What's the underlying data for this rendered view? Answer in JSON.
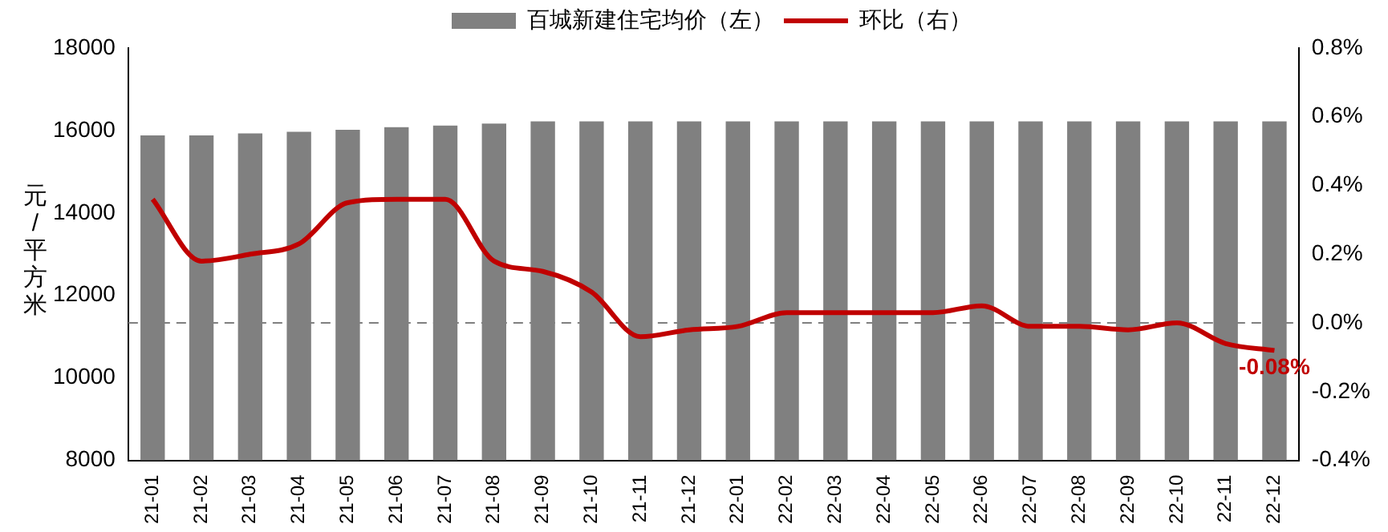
{
  "chart_data": {
    "type": "bar",
    "ylabel": "元/平方米",
    "categories": [
      "21-01",
      "21-02",
      "21-03",
      "21-04",
      "21-05",
      "21-06",
      "21-07",
      "21-08",
      "21-09",
      "21-10",
      "21-11",
      "21-12",
      "22-01",
      "22-02",
      "22-03",
      "22-04",
      "22-05",
      "22-06",
      "22-07",
      "22-08",
      "22-09",
      "22-10",
      "22-11",
      "22-12"
    ],
    "series": [
      {
        "name": "百城新建住宅均价（左）",
        "type": "bar",
        "color": "#808080",
        "values": [
          15880,
          15880,
          15930,
          15970,
          16020,
          16080,
          16120,
          16170,
          16220,
          16220,
          16220,
          16220,
          16220,
          16220,
          16220,
          16220,
          16220,
          16220,
          16220,
          16220,
          16220,
          16220,
          16220,
          16220
        ]
      },
      {
        "name": "环比（右）",
        "type": "line",
        "axis": "y2",
        "color": "#c00000",
        "values": [
          0.36,
          0.18,
          0.2,
          0.23,
          0.35,
          0.36,
          0.36,
          0.18,
          0.15,
          0.09,
          -0.04,
          -0.02,
          -0.01,
          0.03,
          0.03,
          0.03,
          0.03,
          0.05,
          -0.01,
          -0.01,
          -0.02,
          0,
          -0.06,
          -0.08
        ],
        "value_labels": [
          null,
          null,
          null,
          null,
          null,
          null,
          null,
          null,
          null,
          null,
          null,
          null,
          null,
          null,
          null,
          null,
          null,
          null,
          null,
          null,
          null,
          null,
          null,
          "-0.08%"
        ]
      }
    ],
    "ylim": [
      8000,
      18000
    ],
    "yticks": [
      8000,
      10000,
      12000,
      14000,
      16000,
      18000
    ],
    "y2lim": [
      -0.4,
      0.8
    ],
    "y2ticks": [
      {
        "value": -0.4,
        "label": "-0.4%"
      },
      {
        "value": -0.2,
        "label": "-0.2%"
      },
      {
        "value": 0,
        "label": "0.0%"
      },
      {
        "value": 0.2,
        "label": "0.2%"
      },
      {
        "value": 0.4,
        "label": "0.4%"
      },
      {
        "value": 0.6,
        "label": "0.6%"
      },
      {
        "value": 0.8,
        "label": "0.8%"
      }
    ],
    "ref_lines": [
      {
        "axis": "y2",
        "value": 0,
        "color": "#808080",
        "line_style": "dashed"
      }
    ],
    "legend": "top",
    "grid": false,
    "marker": "none",
    "line_style": "solid"
  }
}
